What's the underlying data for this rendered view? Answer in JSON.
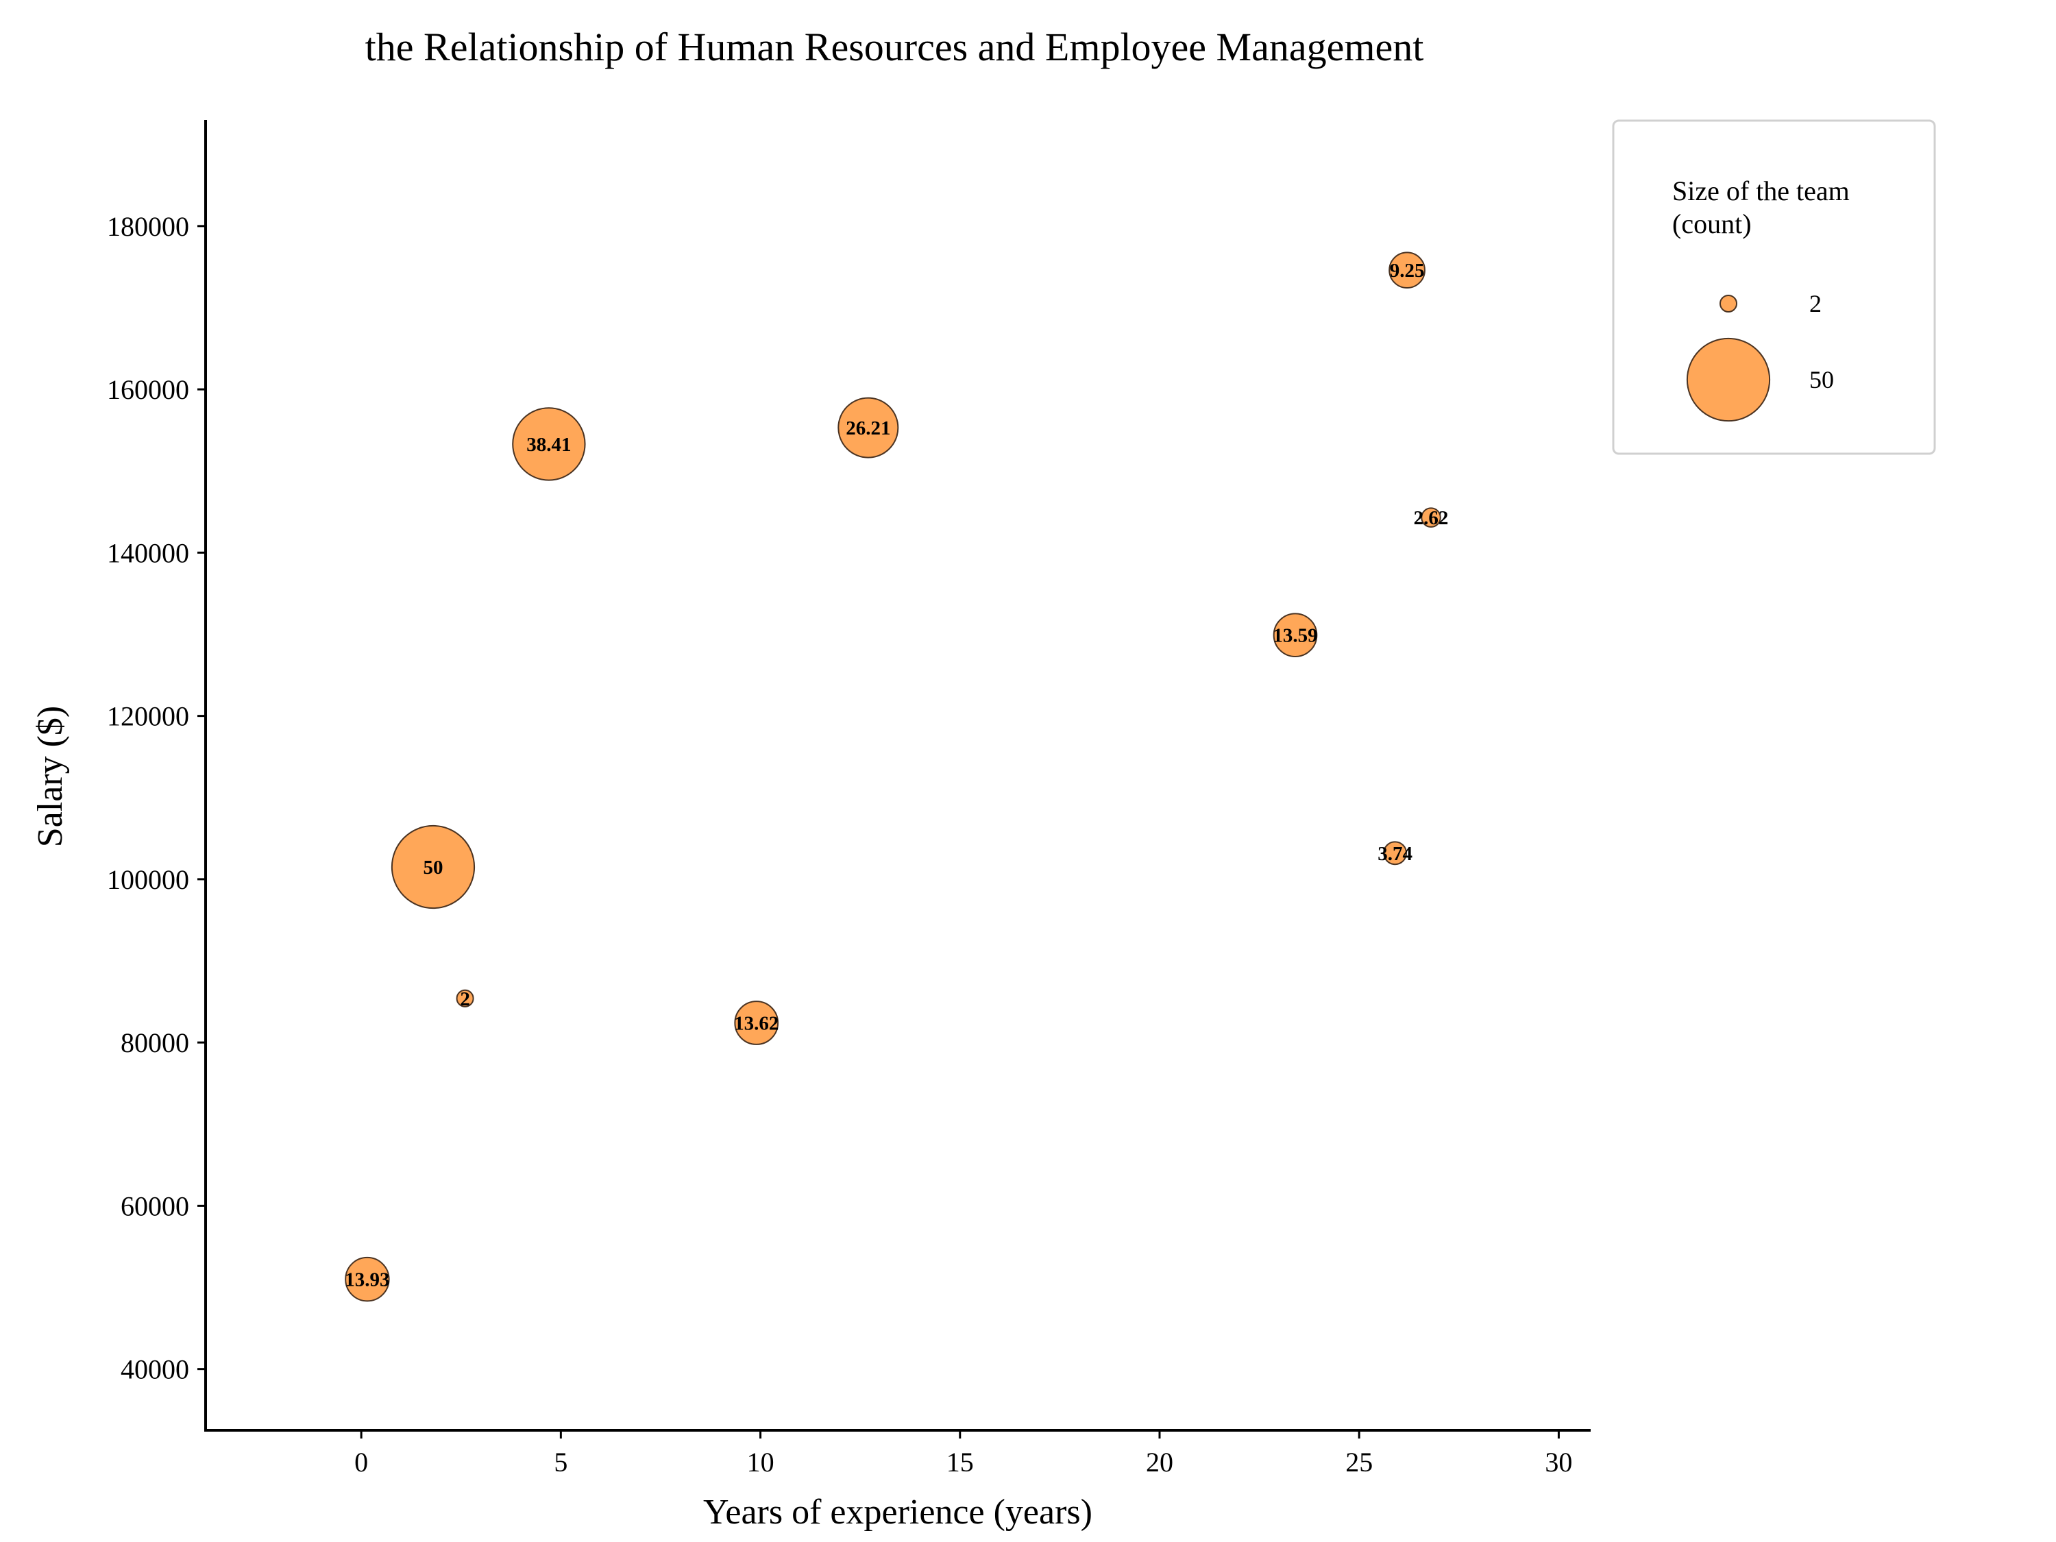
{
  "chart_data": {
    "type": "scatter",
    "title": "the Relationship of Human Resources and Employee Management",
    "xlabel": "Years of experience (years)",
    "ylabel": "Salary ($)",
    "xlim": [
      -3.9,
      30.8
    ],
    "ylim": [
      32500,
      193000
    ],
    "xticks": [
      0,
      5,
      10,
      15,
      20,
      25,
      30
    ],
    "yticks": [
      40000,
      60000,
      80000,
      100000,
      120000,
      140000,
      160000,
      180000
    ],
    "bubble_color": "#ffa758",
    "edge_color": "#4a3322",
    "points": [
      {
        "x": 0.15,
        "y": 51000,
        "size": 13.93,
        "label": "13.93"
      },
      {
        "x": 1.8,
        "y": 101500,
        "size": 50,
        "label": "50"
      },
      {
        "x": 2.6,
        "y": 85400,
        "size": 2,
        "label": "2"
      },
      {
        "x": 4.7,
        "y": 153300,
        "size": 38.41,
        "label": "38.41"
      },
      {
        "x": 9.9,
        "y": 82400,
        "size": 13.62,
        "label": "13.62"
      },
      {
        "x": 12.7,
        "y": 155300,
        "size": 26.21,
        "label": "26.21"
      },
      {
        "x": 23.4,
        "y": 129900,
        "size": 13.59,
        "label": "13.59"
      },
      {
        "x": 25.9,
        "y": 103200,
        "size": 3.74,
        "label": "3.74"
      },
      {
        "x": 26.2,
        "y": 174600,
        "size": 9.25,
        "label": "9.25"
      },
      {
        "x": 26.8,
        "y": 144300,
        "size": 2.62,
        "label": "2.62"
      }
    ],
    "legend": {
      "title_lines": [
        "Size of the team",
        "(count)"
      ],
      "entries": [
        {
          "size": 2,
          "label": "2"
        },
        {
          "size": 50,
          "label": "50"
        }
      ],
      "placement": "outside-top-right"
    },
    "grid": false
  }
}
